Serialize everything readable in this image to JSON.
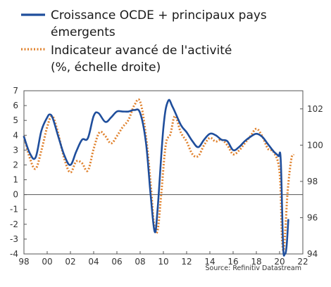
{
  "chart_data": {
    "type": "line",
    "title": "",
    "legend": {
      "placement": "top-left",
      "entries": [
        {
          "label_lines": [
            "Croissance OCDE + principaux pays",
            "émergents"
          ],
          "color": "#1f4e9c",
          "style": "solid"
        },
        {
          "label_lines": [
            "Indicateur avancé de l'activité",
            "(%, échelle droite)"
          ],
          "color": "#e0822e",
          "style": "dotted"
        }
      ]
    },
    "x_axis": {
      "range": [
        1998,
        2022
      ],
      "ticks": [
        1998,
        2000,
        2002,
        2004,
        2006,
        2008,
        2010,
        2012,
        2014,
        2016,
        2018,
        2020,
        2022
      ],
      "tick_labels": [
        "98",
        "00",
        "02",
        "04",
        "06",
        "08",
        "10",
        "12",
        "14",
        "16",
        "18",
        "20",
        "22"
      ]
    },
    "y_left": {
      "range": [
        -4,
        7
      ],
      "ticks": [
        -4,
        -3,
        -2,
        -1,
        0,
        1,
        2,
        3,
        4,
        5,
        6,
        7
      ],
      "tick_labels": [
        "-4",
        "-3",
        "-2",
        "-1",
        "0",
        "1",
        "2",
        "3",
        "4",
        "5",
        "6",
        "7"
      ]
    },
    "y_right": {
      "range": [
        94,
        103
      ],
      "ticks": [
        94,
        96,
        98,
        100,
        102
      ],
      "tick_labels": [
        "94",
        "96",
        "98",
        "100",
        "102"
      ]
    },
    "grid": false,
    "zero_line": true,
    "series": [
      {
        "name": "Croissance OCDE + principaux pays émergents",
        "axis": "left",
        "color": "#1f4e9c",
        "x": [
          1998.0,
          1998.5,
          1999.0,
          1999.5,
          2000.0,
          2000.25,
          2000.5,
          2001.0,
          2001.5,
          2002.0,
          2002.5,
          2003.0,
          2003.5,
          2004.0,
          2004.4,
          2005.0,
          2005.5,
          2006.0,
          2006.5,
          2007.0,
          2007.5,
          2008.0,
          2008.5,
          2008.9,
          2009.25,
          2009.5,
          2010.0,
          2010.4,
          2010.8,
          2011.5,
          2012.0,
          2012.5,
          2013.0,
          2013.5,
          2014.0,
          2014.5,
          2015.0,
          2015.5,
          2016.0,
          2016.5,
          2017.0,
          2017.5,
          2018.0,
          2018.5,
          2019.0,
          2019.5,
          2019.9,
          2020.1,
          2020.3,
          2020.45,
          2020.6,
          2020.75
        ],
        "y": [
          3.9,
          2.8,
          2.5,
          4.3,
          5.2,
          5.4,
          5.1,
          3.8,
          2.6,
          2.0,
          2.9,
          3.7,
          3.8,
          5.3,
          5.5,
          4.9,
          5.2,
          5.6,
          5.6,
          5.6,
          5.7,
          5.5,
          3.5,
          0.0,
          -2.5,
          -1.0,
          4.5,
          6.3,
          5.9,
          4.7,
          4.2,
          3.6,
          3.2,
          3.7,
          4.1,
          4.0,
          3.7,
          3.6,
          3.0,
          3.2,
          3.6,
          3.9,
          4.1,
          3.9,
          3.4,
          2.9,
          2.6,
          2.3,
          -3.4,
          -4.0,
          -3.5,
          -1.7
        ]
      },
      {
        "name": "Indicateur avancé de l'activité (%, échelle droite)",
        "axis": "right",
        "color": "#e0822e",
        "x": [
          1998.0,
          1998.5,
          1999.0,
          1999.5,
          2000.0,
          2000.4,
          2000.8,
          2001.5,
          2002.0,
          2002.5,
          2003.0,
          2003.5,
          2004.0,
          2004.5,
          2005.0,
          2005.5,
          2006.0,
          2006.5,
          2007.0,
          2007.5,
          2008.0,
          2008.5,
          2008.9,
          2009.2,
          2009.5,
          2009.8,
          2010.2,
          2010.6,
          2011.0,
          2011.5,
          2012.0,
          2012.5,
          2013.0,
          2013.5,
          2014.0,
          2014.5,
          2015.0,
          2015.5,
          2016.0,
          2016.5,
          2017.0,
          2017.5,
          2018.0,
          2018.5,
          2019.0,
          2019.5,
          2020.0,
          2020.2,
          2020.35,
          2020.5,
          2020.7,
          2021.0,
          2021.2
        ],
        "y": [
          100.5,
          99.3,
          98.7,
          99.7,
          101.0,
          101.6,
          101.0,
          99.2,
          98.5,
          99.1,
          99.0,
          98.6,
          99.8,
          100.7,
          100.5,
          100.1,
          100.5,
          101.0,
          101.4,
          102.2,
          102.4,
          100.5,
          97.9,
          95.6,
          95.3,
          97.2,
          100.0,
          100.6,
          101.6,
          100.7,
          100.2,
          99.5,
          99.4,
          100.0,
          100.4,
          100.2,
          100.3,
          100.0,
          99.5,
          99.7,
          100.1,
          100.5,
          100.9,
          100.5,
          99.8,
          99.6,
          98.5,
          95.0,
          94.2,
          95.4,
          97.5,
          99.2,
          99.5
        ]
      }
    ],
    "source": "Source: Refinitiv Datastream"
  }
}
